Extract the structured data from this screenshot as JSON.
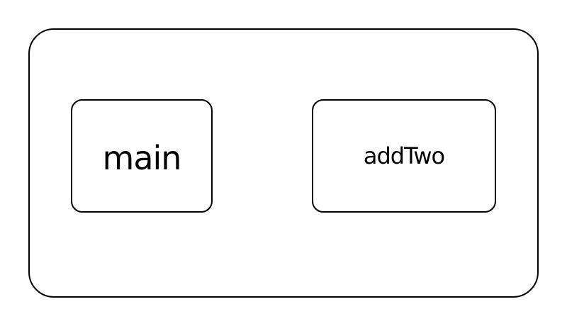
{
  "diagram": {
    "nodes": [
      {
        "id": "main",
        "label": "main"
      },
      {
        "id": "addTwo",
        "label": "addTwo"
      }
    ]
  }
}
